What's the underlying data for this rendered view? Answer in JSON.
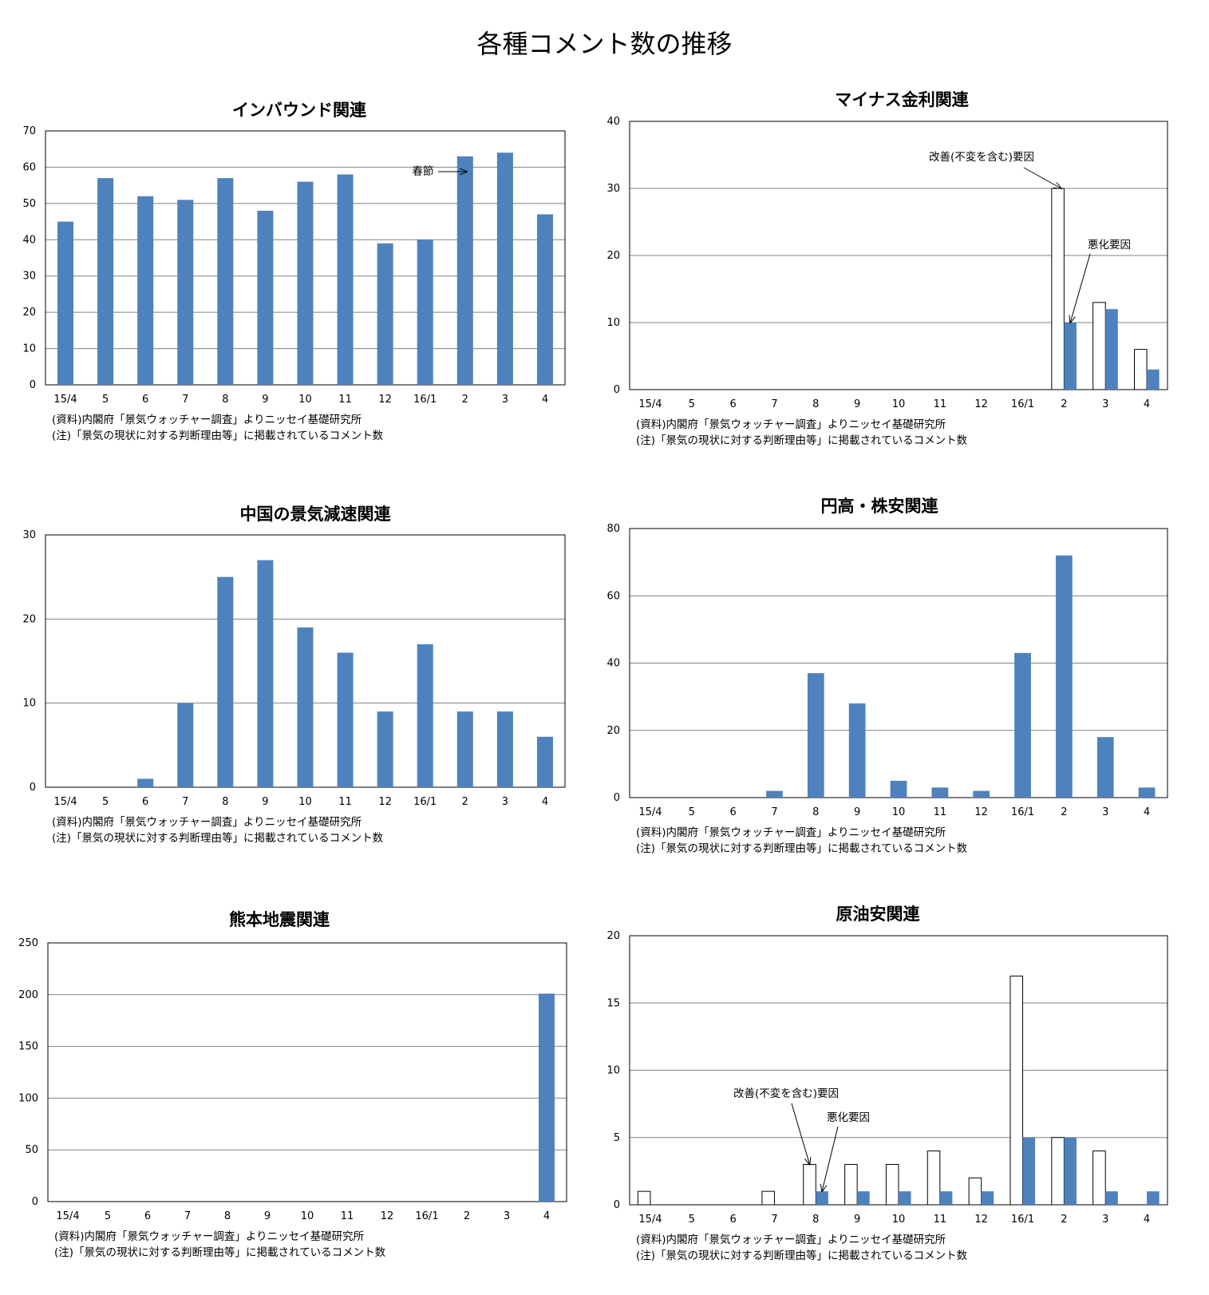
{
  "page_title": "各種コメント数の推移",
  "notes": {
    "source": "(資料)内閣府「景気ウォッチャー調査」よりニッセイ基礎研究所",
    "note": "(注)「景気の現状に対する判断理由等」に掲載されているコメント数"
  },
  "colors": {
    "worsen_fill": "#4f81bd",
    "improve_fill": "#ffffff",
    "outline": "#000000",
    "grid": "#808080"
  },
  "chart_data": [
    {
      "type": "bar",
      "title": "インバウンド関連",
      "categories": [
        "15/4",
        "5",
        "6",
        "7",
        "8",
        "9",
        "10",
        "11",
        "12",
        "16/1",
        "2",
        "3",
        "4"
      ],
      "ylim": [
        0,
        70
      ],
      "yticks": [
        0,
        10,
        20,
        30,
        40,
        50,
        60,
        70
      ],
      "series": [
        {
          "name": "コメント数",
          "style": "filled",
          "values": [
            45,
            57,
            52,
            51,
            57,
            48,
            56,
            58,
            39,
            40,
            63,
            64,
            47
          ]
        }
      ],
      "annotations": [
        {
          "text": "春節",
          "target": "16/1 → 2"
        }
      ]
    },
    {
      "type": "bar",
      "title": "マイナス金利関連",
      "categories": [
        "15/4",
        "5",
        "6",
        "7",
        "8",
        "9",
        "10",
        "11",
        "12",
        "16/1",
        "2",
        "3",
        "4"
      ],
      "ylim": [
        0,
        40
      ],
      "yticks": [
        0,
        10,
        20,
        30,
        40
      ],
      "series": [
        {
          "name": "改善(不変を含む)要因",
          "style": "outline",
          "values": [
            0,
            0,
            0,
            0,
            0,
            0,
            0,
            0,
            0,
            0,
            30,
            13,
            6
          ]
        },
        {
          "name": "悪化要因",
          "style": "filled",
          "values": [
            0,
            0,
            0,
            0,
            0,
            0,
            0,
            0,
            0,
            0,
            10,
            12,
            3
          ]
        }
      ],
      "annotations": [
        {
          "text": "改善(不変を含む)要因"
        },
        {
          "text": "悪化要因"
        }
      ]
    },
    {
      "type": "bar",
      "title": "中国の景気減速関連",
      "categories": [
        "15/4",
        "5",
        "6",
        "7",
        "8",
        "9",
        "10",
        "11",
        "12",
        "16/1",
        "2",
        "3",
        "4"
      ],
      "ylim": [
        0,
        30
      ],
      "yticks": [
        0,
        10,
        20,
        30
      ],
      "series": [
        {
          "name": "コメント数",
          "style": "filled",
          "values": [
            0,
            0,
            1,
            10,
            25,
            27,
            19,
            16,
            9,
            17,
            9,
            9,
            6
          ]
        }
      ],
      "annotations": []
    },
    {
      "type": "bar",
      "title": "円高・株安関連",
      "categories": [
        "15/4",
        "5",
        "6",
        "7",
        "8",
        "9",
        "10",
        "11",
        "12",
        "16/1",
        "2",
        "3",
        "4"
      ],
      "ylim": [
        0,
        80
      ],
      "yticks": [
        0,
        20,
        40,
        60,
        80
      ],
      "series": [
        {
          "name": "コメント数",
          "style": "filled",
          "values": [
            0,
            0,
            0,
            2,
            37,
            28,
            5,
            3,
            2,
            43,
            72,
            18,
            3
          ]
        }
      ],
      "annotations": []
    },
    {
      "type": "bar",
      "title": "熊本地震関連",
      "categories": [
        "15/4",
        "5",
        "6",
        "7",
        "8",
        "9",
        "10",
        "11",
        "12",
        "16/1",
        "2",
        "3",
        "4"
      ],
      "ylim": [
        0,
        250
      ],
      "yticks": [
        0,
        50,
        100,
        150,
        200,
        250
      ],
      "series": [
        {
          "name": "コメント数",
          "style": "filled",
          "values": [
            0,
            0,
            0,
            0,
            0,
            0,
            0,
            0,
            0,
            0,
            0,
            0,
            201
          ]
        }
      ],
      "annotations": []
    },
    {
      "type": "bar",
      "title": "原油安関連",
      "categories": [
        "15/4",
        "5",
        "6",
        "7",
        "8",
        "9",
        "10",
        "11",
        "12",
        "16/1",
        "2",
        "3",
        "4"
      ],
      "ylim": [
        0,
        20
      ],
      "yticks": [
        0,
        5,
        10,
        15,
        20
      ],
      "series": [
        {
          "name": "改善(不変を含む)要因",
          "style": "outline",
          "values": [
            1,
            0,
            0,
            1,
            3,
            3,
            3,
            4,
            2,
            17,
            5,
            4,
            0
          ]
        },
        {
          "name": "悪化要因",
          "style": "filled",
          "values": [
            0,
            0,
            0,
            0,
            1,
            1,
            1,
            1,
            1,
            5,
            5,
            1,
            1
          ]
        }
      ],
      "annotations": [
        {
          "text": "改善(不変を含む)要因"
        },
        {
          "text": "悪化要因"
        }
      ]
    }
  ]
}
